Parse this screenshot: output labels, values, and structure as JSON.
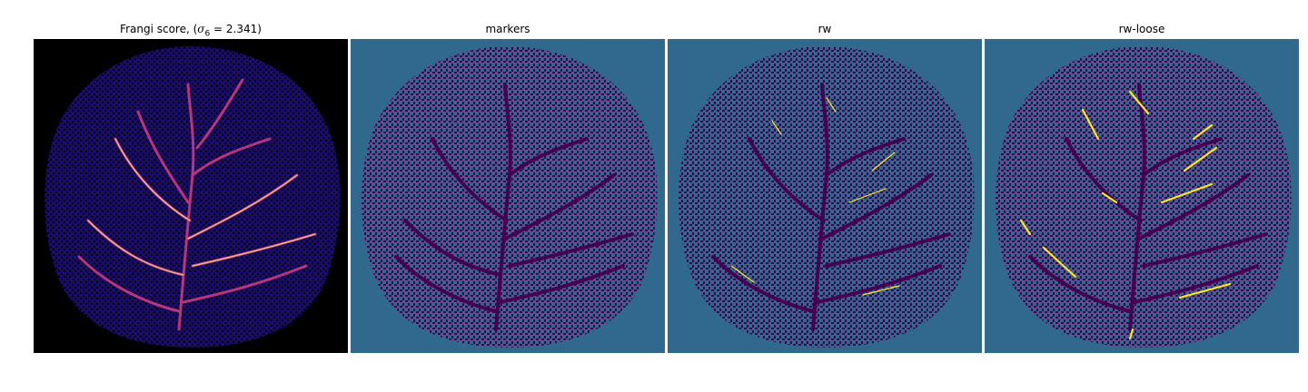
{
  "panels": [
    {
      "title_prefix": "Frangi score, (",
      "title_math": "σ",
      "title_sub": "6",
      "title_suffix": " = 2.341)",
      "colormap": "magma"
    },
    {
      "title": "markers",
      "colormap": "viridis"
    },
    {
      "title": "rw",
      "colormap": "viridis"
    },
    {
      "title": "rw-loose",
      "colormap": "viridis"
    }
  ],
  "colors": {
    "background_dark": "#000000",
    "disc_dark": "#1a0a6a",
    "vessel_magma": "#b5367a",
    "vessel_magma_bright": "#fcdc8c",
    "viridis_bg": "#31688e",
    "viridis_low": "#440154",
    "viridis_high": "#fde725"
  }
}
